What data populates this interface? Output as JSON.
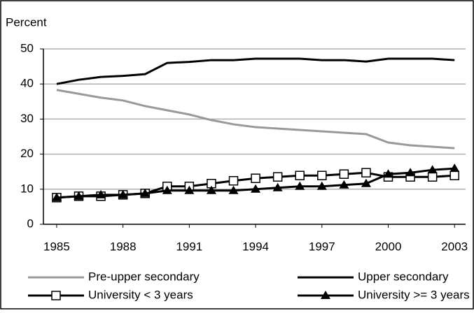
{
  "chart_data": {
    "type": "line",
    "y_label": "Percent",
    "x": [
      1985,
      1986,
      1987,
      1988,
      1989,
      1990,
      1991,
      1992,
      1993,
      1994,
      1995,
      1996,
      1997,
      1998,
      1999,
      2000,
      2001,
      2002,
      2003
    ],
    "series": [
      {
        "name": "Pre-upper secondary",
        "color": "#999999",
        "values": [
          38.3,
          37.2,
          36.1,
          35.3,
          33.7,
          32.5,
          31.3,
          29.7,
          28.5,
          27.7,
          27.3,
          26.9,
          26.5,
          26.1,
          25.7,
          23.3,
          22.5,
          22.1,
          21.7
        ]
      },
      {
        "name": "Upper secondary",
        "color": "#000000",
        "values": [
          40,
          41.2,
          42,
          42.3,
          42.8,
          46,
          46.3,
          46.8,
          46.8,
          47.2,
          47.2,
          47.2,
          46.8,
          46.8,
          46.4,
          47.2,
          47.2,
          47.2,
          46.8
        ]
      },
      {
        "name": "University < 3 years",
        "color": "#000000",
        "marker": "square",
        "values": [
          7.6,
          8,
          8,
          8.4,
          8.8,
          10.8,
          10.8,
          11.6,
          12.4,
          13.1,
          13.5,
          13.9,
          13.9,
          14.3,
          14.7,
          13.5,
          13.5,
          13.5,
          13.9
        ]
      },
      {
        "name": "University >= 3 years",
        "color": "#000000",
        "marker": "triangle",
        "values": [
          7.6,
          8,
          8.4,
          8.4,
          8.8,
          9.6,
          9.6,
          9.6,
          9.6,
          10,
          10.4,
          10.8,
          10.8,
          11.2,
          11.6,
          14.3,
          14.7,
          15.5,
          15.9
        ]
      }
    ],
    "xlim": [
      1984.4,
      2003.5
    ],
    "xticks": [
      1985,
      1988,
      1991,
      1994,
      1997,
      2000,
      2003
    ],
    "ylim": [
      0,
      50
    ],
    "yticks": [
      0,
      10,
      20,
      30,
      40,
      50
    ],
    "grid": true,
    "legend": "bottom"
  }
}
